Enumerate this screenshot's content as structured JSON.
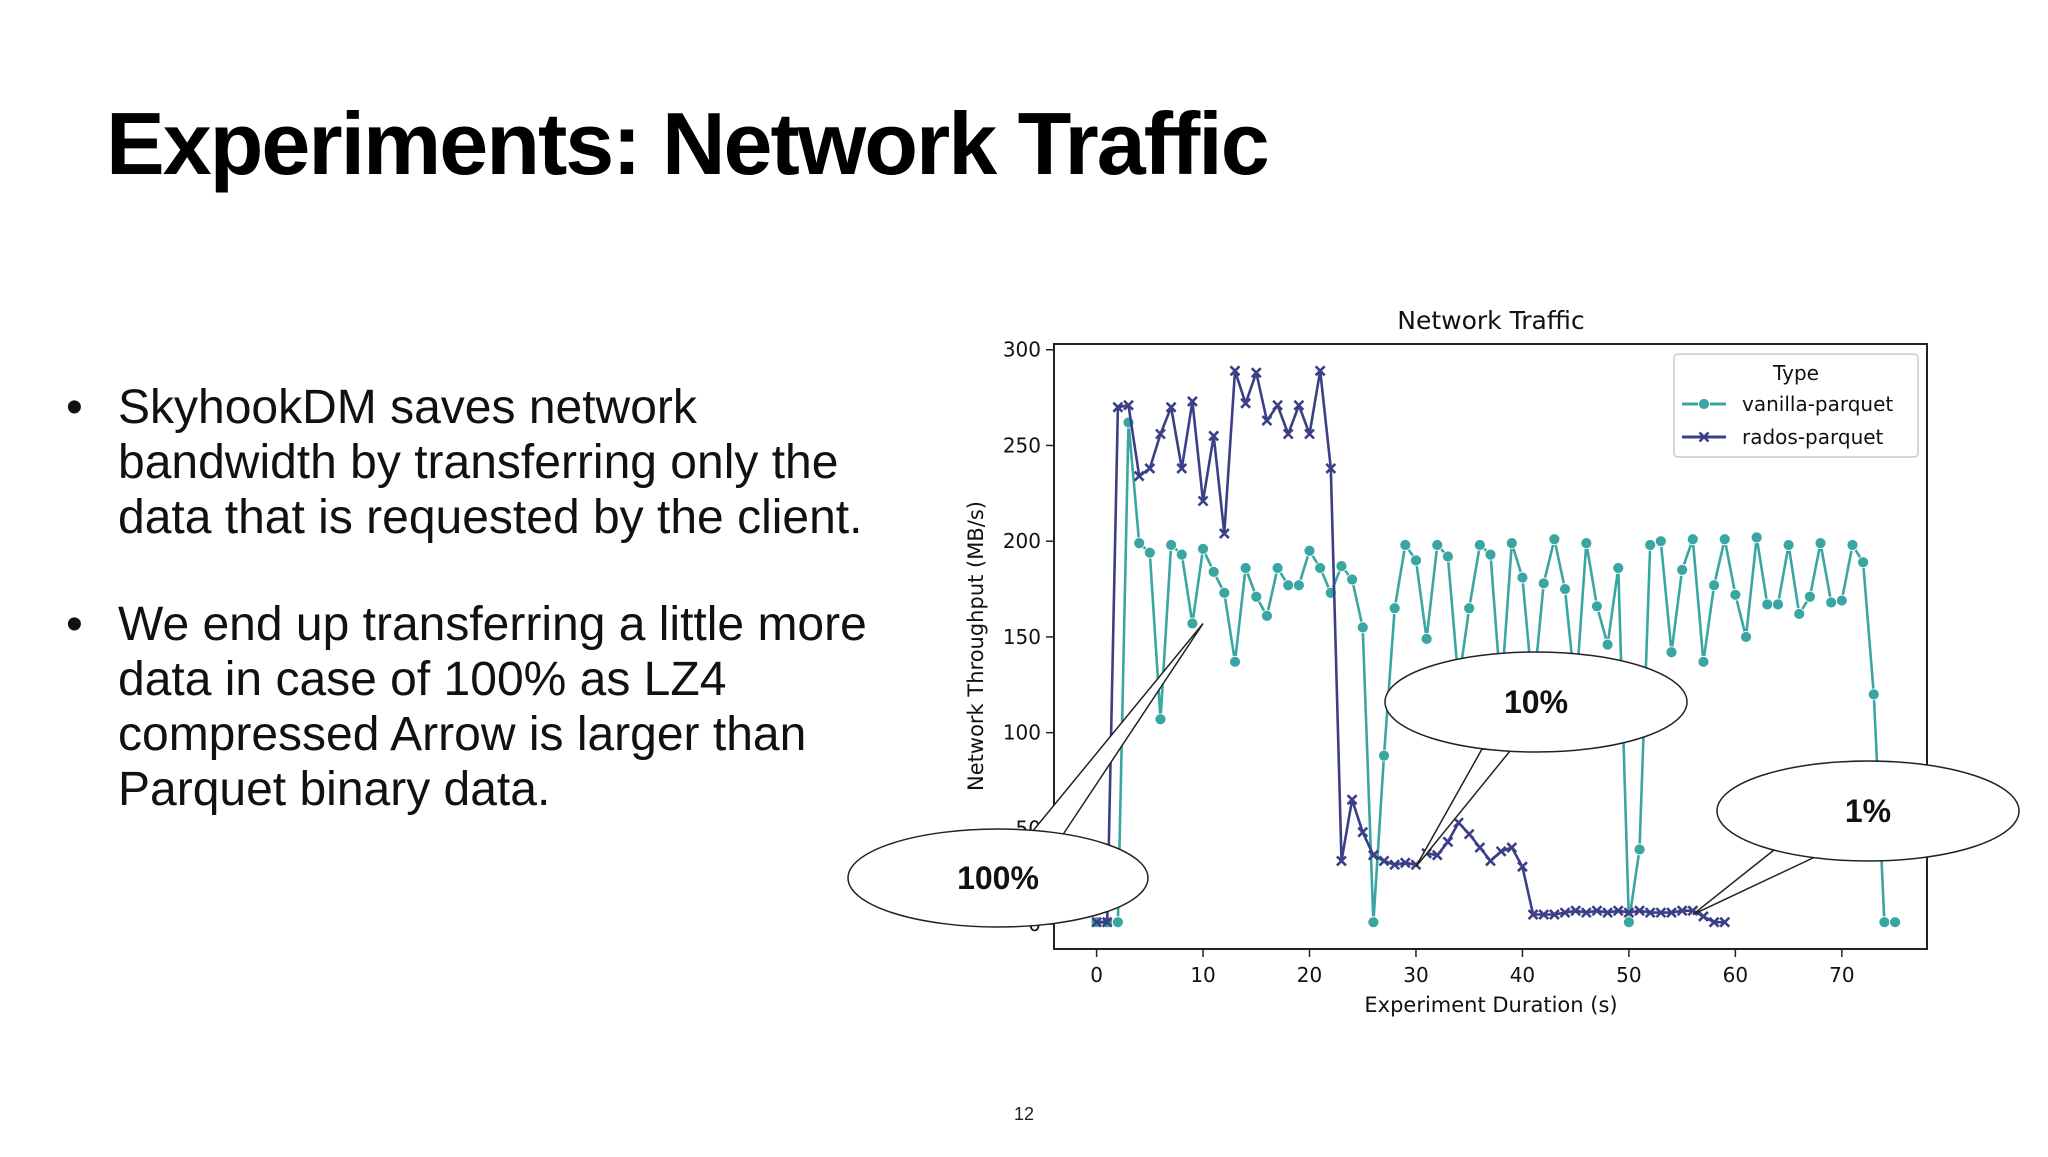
{
  "slide": {
    "title": "Experiments: Network Traffic",
    "bullets": [
      "SkyhookDM saves network bandwidth by transferring only the data that is requested by the client.",
      "We end up transferring a little more data in case of 100% as LZ4 compressed Arrow is larger than Parquet binary data."
    ],
    "bullet_glyph": "•",
    "page_number": "12"
  },
  "callouts": [
    {
      "label": "100%",
      "points_to": [
        10,
        157
      ]
    },
    {
      "label": "10%",
      "points_to": [
        30,
        30
      ]
    },
    {
      "label": "1%",
      "points_to": [
        56,
        5
      ]
    }
  ],
  "chart_data": {
    "type": "line",
    "title": "Network Traffic",
    "xlabel": "Experiment Duration (s)",
    "ylabel": "Network Throughput (MB/s)",
    "xlim": [
      -4,
      78
    ],
    "ylim": [
      -13,
      303
    ],
    "xticks": [
      0,
      10,
      20,
      30,
      40,
      50,
      60,
      70
    ],
    "yticks": [
      0,
      50,
      100,
      150,
      200,
      250,
      300
    ],
    "grid": false,
    "legend": {
      "title": "Type",
      "position": "top-right"
    },
    "series": [
      {
        "name": "vanilla-parquet",
        "color": "#3aa6a2",
        "marker": "circle",
        "x": [
          0,
          1,
          2,
          3,
          4,
          5,
          6,
          7,
          8,
          9,
          10,
          11,
          12,
          13,
          14,
          15,
          16,
          17,
          18,
          19,
          20,
          21,
          22,
          23,
          24,
          25,
          26,
          27,
          28,
          29,
          30,
          31,
          32,
          33,
          34,
          35,
          36,
          37,
          38,
          39,
          40,
          41,
          42,
          43,
          44,
          45,
          46,
          47,
          48,
          49,
          50,
          51,
          52,
          53,
          54,
          55,
          56,
          57,
          58,
          59,
          60,
          61,
          62,
          63,
          64,
          65,
          66,
          67,
          68,
          69,
          70,
          71,
          72,
          73,
          74,
          75
        ],
        "y": [
          1,
          1,
          1,
          262,
          199,
          194,
          107,
          198,
          193,
          157,
          196,
          184,
          173,
          137,
          186,
          171,
          161,
          186,
          177,
          177,
          195,
          186,
          173,
          187,
          180,
          155,
          1,
          88,
          165,
          198,
          190,
          149,
          198,
          192,
          126,
          165,
          198,
          193,
          120,
          199,
          181,
          120,
          178,
          201,
          175,
          120,
          199,
          166,
          146,
          186,
          1,
          39,
          198,
          200,
          142,
          185,
          201,
          137,
          177,
          201,
          172,
          150,
          202,
          167,
          167,
          198,
          162,
          171,
          199,
          168,
          169,
          198,
          189,
          120,
          1,
          1
        ]
      },
      {
        "name": "rados-parquet",
        "color": "#3b3f86",
        "marker": "x",
        "x": [
          0,
          1,
          2,
          3,
          4,
          5,
          6,
          7,
          8,
          9,
          10,
          11,
          12,
          13,
          14,
          15,
          16,
          17,
          18,
          19,
          20,
          21,
          22,
          23,
          24,
          25,
          26,
          27,
          28,
          29,
          30,
          31,
          32,
          33,
          34,
          35,
          36,
          37,
          38,
          39,
          40,
          41,
          42,
          43,
          44,
          45,
          46,
          47,
          48,
          49,
          50,
          51,
          52,
          53,
          54,
          55,
          56,
          57,
          58,
          59
        ],
        "y": [
          1,
          1,
          270,
          271,
          234,
          238,
          256,
          270,
          238,
          273,
          221,
          255,
          204,
          289,
          272,
          288,
          263,
          271,
          256,
          271,
          256,
          289,
          238,
          33,
          65,
          48,
          36,
          33,
          31,
          32,
          31,
          37,
          36,
          43,
          53,
          47,
          40,
          33,
          38,
          40,
          30,
          5,
          5,
          5,
          6,
          7,
          6,
          7,
          6,
          7,
          6,
          7,
          6,
          6,
          6,
          7,
          7,
          4,
          1,
          1
        ]
      }
    ]
  }
}
